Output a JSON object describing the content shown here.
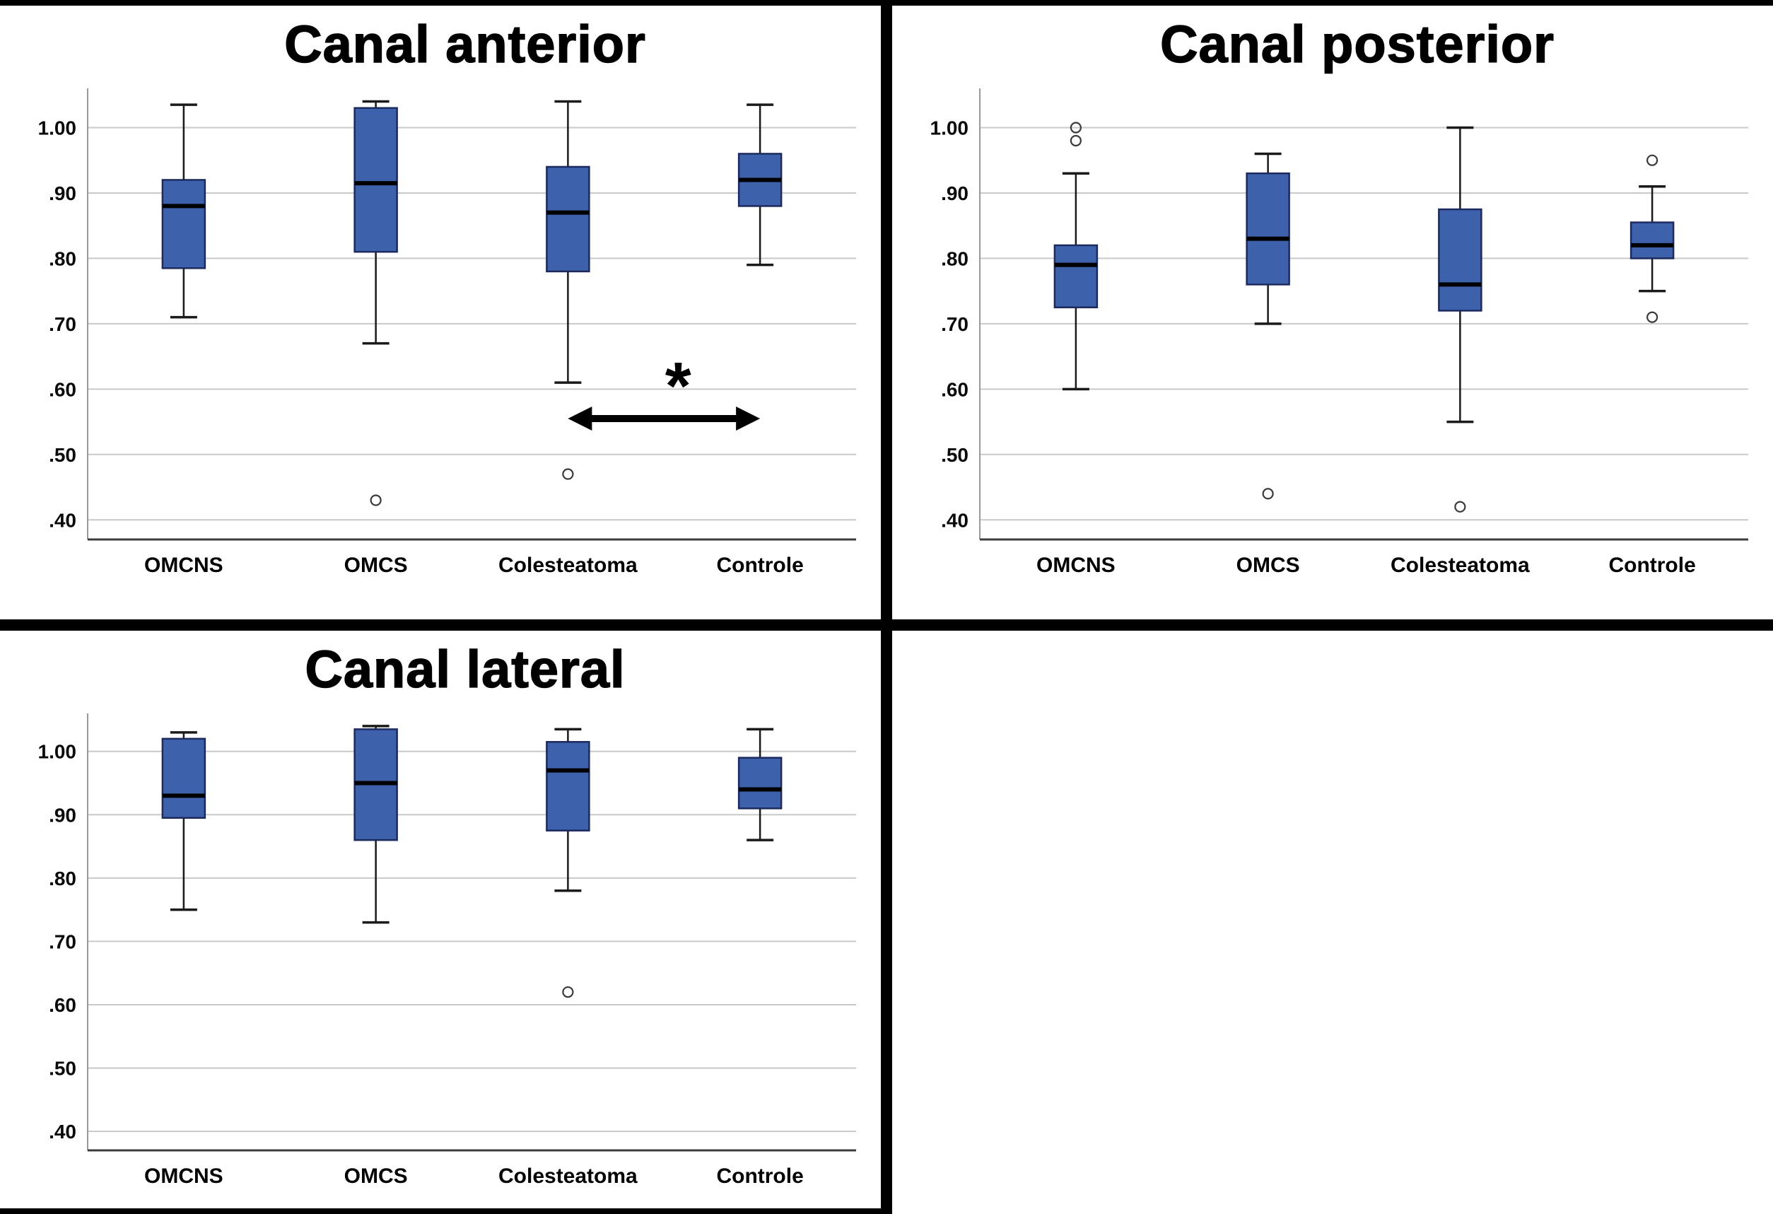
{
  "figure": {
    "background": "#ffffff",
    "divider_color": "#000000",
    "panel_count": 4,
    "empty_panel": "bottom-right"
  },
  "colors": {
    "box_fill": "#3e61ac",
    "box_border": "#1c2a5e",
    "median": "#000000",
    "whisker": "#1a1a1a",
    "outlier_stroke": "#3a3a3a",
    "gridline": "#c9c9c9",
    "axis": "#9a9a9a",
    "title": "#000000"
  },
  "chart_data": [
    {
      "type": "box",
      "title": "Canal anterior",
      "categories": [
        "OMCNS",
        "OMCS",
        "Colesteatoma",
        "Controle"
      ],
      "yticks": [
        ".40",
        ".50",
        ".60",
        ".70",
        ".80",
        ".90",
        "1.00"
      ],
      "ytick_values": [
        0.4,
        0.5,
        0.6,
        0.7,
        0.8,
        0.9,
        1.0
      ],
      "ylim": [
        0.37,
        1.06
      ],
      "grid": true,
      "legend": "none",
      "boxes": [
        {
          "category": "OMCNS",
          "low": 0.71,
          "q1": 0.785,
          "median": 0.88,
          "q3": 0.92,
          "high": 1.035,
          "outliers": []
        },
        {
          "category": "OMCS",
          "low": 0.67,
          "q1": 0.81,
          "median": 0.915,
          "q3": 1.03,
          "high": 1.04,
          "outliers": [
            0.43
          ]
        },
        {
          "category": "Colesteatoma",
          "low": 0.61,
          "q1": 0.78,
          "median": 0.87,
          "q3": 0.94,
          "high": 1.04,
          "outliers": [
            0.47
          ]
        },
        {
          "category": "Controle",
          "low": 0.79,
          "q1": 0.88,
          "median": 0.92,
          "q3": 0.96,
          "high": 1.035,
          "outliers": []
        }
      ],
      "annotation": {
        "label": "*",
        "from_category": "Colesteatoma",
        "to_category": "Controle",
        "arrow_y": 0.555
      }
    },
    {
      "type": "box",
      "title": "Canal posterior",
      "categories": [
        "OMCNS",
        "OMCS",
        "Colesteatoma",
        "Controle"
      ],
      "yticks": [
        ".40",
        ".50",
        ".60",
        ".70",
        ".80",
        ".90",
        "1.00"
      ],
      "ytick_values": [
        0.4,
        0.5,
        0.6,
        0.7,
        0.8,
        0.9,
        1.0
      ],
      "ylim": [
        0.37,
        1.06
      ],
      "grid": true,
      "legend": "none",
      "boxes": [
        {
          "category": "OMCNS",
          "low": 0.6,
          "q1": 0.725,
          "median": 0.79,
          "q3": 0.82,
          "high": 0.93,
          "outliers": [
            0.98,
            1.0
          ]
        },
        {
          "category": "OMCS",
          "low": 0.7,
          "q1": 0.76,
          "median": 0.83,
          "q3": 0.93,
          "high": 0.96,
          "outliers": [
            0.44
          ]
        },
        {
          "category": "Colesteatoma",
          "low": 0.55,
          "q1": 0.72,
          "median": 0.76,
          "q3": 0.875,
          "high": 1.0,
          "outliers": [
            0.42
          ]
        },
        {
          "category": "Controle",
          "low": 0.75,
          "q1": 0.8,
          "median": 0.82,
          "q3": 0.855,
          "high": 0.91,
          "outliers": [
            0.71,
            0.95
          ]
        }
      ]
    },
    {
      "type": "box",
      "title": "Canal lateral",
      "categories": [
        "OMCNS",
        "OMCS",
        "Colesteatoma",
        "Controle"
      ],
      "yticks": [
        ".40",
        ".50",
        ".60",
        ".70",
        ".80",
        ".90",
        "1.00"
      ],
      "ytick_values": [
        0.4,
        0.5,
        0.6,
        0.7,
        0.8,
        0.9,
        1.0
      ],
      "ylim": [
        0.37,
        1.06
      ],
      "grid": true,
      "legend": "none",
      "boxes": [
        {
          "category": "OMCNS",
          "low": 0.75,
          "q1": 0.895,
          "median": 0.93,
          "q3": 1.02,
          "high": 1.03,
          "outliers": []
        },
        {
          "category": "OMCS",
          "low": 0.73,
          "q1": 0.86,
          "median": 0.95,
          "q3": 1.035,
          "high": 1.04,
          "outliers": []
        },
        {
          "category": "Colesteatoma",
          "low": 0.78,
          "q1": 0.875,
          "median": 0.97,
          "q3": 1.015,
          "high": 1.035,
          "outliers": [
            0.62
          ]
        },
        {
          "category": "Controle",
          "low": 0.86,
          "q1": 0.91,
          "median": 0.94,
          "q3": 0.99,
          "high": 1.035,
          "outliers": []
        }
      ]
    }
  ]
}
